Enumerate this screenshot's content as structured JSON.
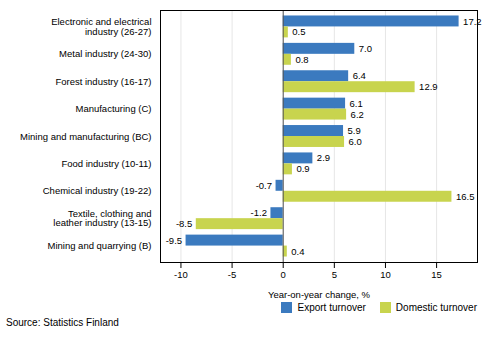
{
  "chart_data": {
    "type": "bar",
    "orientation": "horizontal",
    "categories": [
      "Electronic and electrical\nindustry (26-27)",
      "Metal industry (24-30)",
      "Forest industry (16-17)",
      "Manufacturing (C)",
      "Mining and manufacturing (BC)",
      "Food industry (10-11)",
      "Chemical industry (19-22)",
      "Textile, clothing and\nleather industry (13-15)",
      "Mining and quarrying (B)"
    ],
    "series": [
      {
        "name": "Export turnover",
        "color": "#3b7abf",
        "values": [
          17.2,
          7.0,
          6.4,
          6.1,
          5.9,
          2.9,
          -0.7,
          -1.2,
          -9.5
        ],
        "value_labels": [
          "17.2",
          "7.0",
          "6.4",
          "6.1",
          "5.9",
          "2.9",
          "-0.7",
          "-1.2",
          "-9.5"
        ]
      },
      {
        "name": "Domestic turnover",
        "color": "#c8d44e",
        "values": [
          0.5,
          0.8,
          12.9,
          6.2,
          6.0,
          0.9,
          16.5,
          -8.5,
          0.4
        ],
        "value_labels": [
          "0.5",
          "0.8",
          "12.9",
          "6.2",
          "6.0",
          "0.9",
          "16.5",
          "-8.5",
          "0.4"
        ]
      }
    ],
    "xlabel": "Year-on-year change, %",
    "xlim": [
      -12,
      19
    ],
    "xticks": [
      -10,
      -5,
      0,
      5,
      10,
      15
    ],
    "grid": true,
    "legend": "lower right",
    "data_labels": true,
    "annotations": [
      "Source: Statistics Finland"
    ]
  }
}
